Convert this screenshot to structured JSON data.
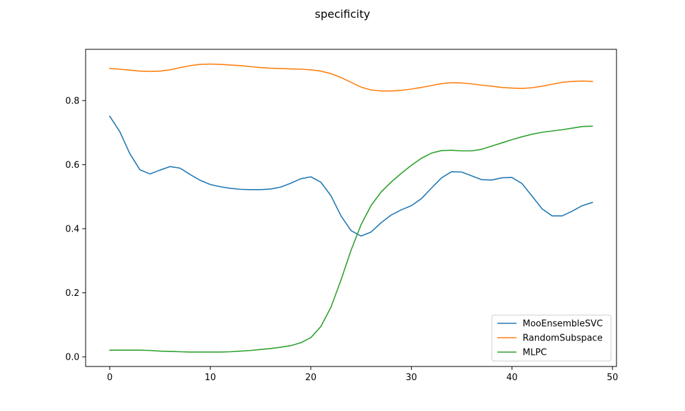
{
  "chart_data": {
    "type": "line",
    "title": "specificity",
    "xlabel": "",
    "ylabel": "",
    "xlim": [
      -2.4,
      50.4
    ],
    "ylim": [
      -0.03,
      0.96
    ],
    "xticks": [
      0,
      10,
      20,
      30,
      40,
      50
    ],
    "yticks": [
      0.0,
      0.2,
      0.4,
      0.6,
      0.8
    ],
    "xtick_labels": [
      "0",
      "10",
      "20",
      "30",
      "40",
      "50"
    ],
    "ytick_labels": [
      "0.0",
      "0.2",
      "0.4",
      "0.6",
      "0.8"
    ],
    "grid": false,
    "legend_position": "lower-right",
    "x": [
      0,
      1,
      2,
      3,
      4,
      5,
      6,
      7,
      8,
      9,
      10,
      11,
      12,
      13,
      14,
      15,
      16,
      17,
      18,
      19,
      20,
      21,
      22,
      23,
      24,
      25,
      26,
      27,
      28,
      29,
      30,
      31,
      32,
      33,
      34,
      35,
      36,
      37,
      38,
      39,
      40,
      41,
      42,
      43,
      44,
      45,
      46,
      47,
      48
    ],
    "series": [
      {
        "name": "MooEnsembleSVC",
        "color": "#1f77b4",
        "values": [
          0.751,
          0.703,
          0.634,
          0.584,
          0.571,
          0.583,
          0.594,
          0.589,
          0.569,
          0.551,
          0.538,
          0.531,
          0.526,
          0.523,
          0.522,
          0.522,
          0.524,
          0.53,
          0.542,
          0.556,
          0.562,
          0.545,
          0.503,
          0.44,
          0.394,
          0.377,
          0.39,
          0.419,
          0.443,
          0.459,
          0.472,
          0.494,
          0.527,
          0.559,
          0.578,
          0.577,
          0.565,
          0.553,
          0.552,
          0.559,
          0.56,
          0.541,
          0.502,
          0.462,
          0.44,
          0.44,
          0.455,
          0.472,
          0.482
        ]
      },
      {
        "name": "RandomSubspace",
        "color": "#ff7f0e",
        "values": [
          0.9,
          0.898,
          0.895,
          0.892,
          0.891,
          0.892,
          0.896,
          0.903,
          0.909,
          0.913,
          0.914,
          0.913,
          0.911,
          0.909,
          0.906,
          0.903,
          0.901,
          0.9,
          0.899,
          0.898,
          0.896,
          0.892,
          0.884,
          0.872,
          0.857,
          0.842,
          0.833,
          0.83,
          0.83,
          0.832,
          0.836,
          0.841,
          0.847,
          0.853,
          0.856,
          0.855,
          0.852,
          0.848,
          0.845,
          0.841,
          0.839,
          0.838,
          0.84,
          0.845,
          0.851,
          0.857,
          0.86,
          0.861,
          0.86
        ]
      },
      {
        "name": "MLPC",
        "color": "#2ca02c",
        "values": [
          0.021,
          0.021,
          0.021,
          0.021,
          0.02,
          0.018,
          0.017,
          0.016,
          0.015,
          0.015,
          0.015,
          0.015,
          0.016,
          0.018,
          0.02,
          0.023,
          0.026,
          0.03,
          0.035,
          0.044,
          0.06,
          0.095,
          0.155,
          0.24,
          0.333,
          0.413,
          0.473,
          0.515,
          0.546,
          0.573,
          0.598,
          0.62,
          0.636,
          0.644,
          0.645,
          0.643,
          0.643,
          0.648,
          0.658,
          0.668,
          0.678,
          0.687,
          0.695,
          0.701,
          0.705,
          0.709,
          0.714,
          0.719,
          0.72
        ]
      }
    ]
  }
}
